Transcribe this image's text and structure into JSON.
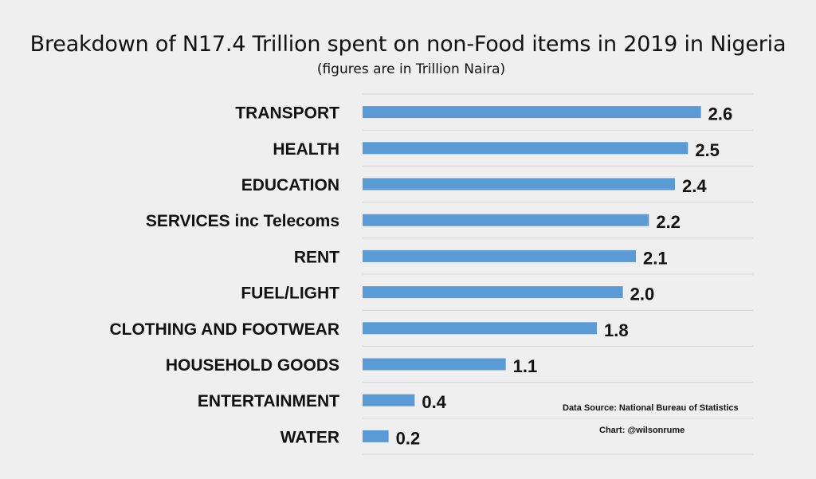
{
  "chart_data": {
    "type": "bar",
    "orientation": "horizontal",
    "title": "Breakdown of N17.4 Trillion spent on non-Food items in 2019 in Nigeria",
    "subtitle": "(figures are in Trillion Naira)",
    "categories": [
      "TRANSPORT",
      "HEALTH",
      "EDUCATION",
      "SERVICES inc Telecoms",
      "RENT",
      "FUEL/LIGHT",
      "CLOTHING AND FOOTWEAR",
      "HOUSEHOLD GOODS",
      "ENTERTAINMENT",
      "WATER"
    ],
    "values": [
      2.6,
      2.5,
      2.4,
      2.2,
      2.1,
      2.0,
      1.8,
      1.1,
      0.4,
      0.2
    ],
    "value_labels": [
      "2.6",
      "2.5",
      "2.4",
      "2.2",
      "2.1",
      "2.0",
      "1.8",
      "1.1",
      "0.4",
      "0.2"
    ],
    "xlim": [
      0,
      3
    ],
    "grid": true,
    "bar_color": "#5b9bd5",
    "annotations": [
      "Data Source: National Bureau of Statistics",
      "Chart: @wilsonrume"
    ]
  }
}
